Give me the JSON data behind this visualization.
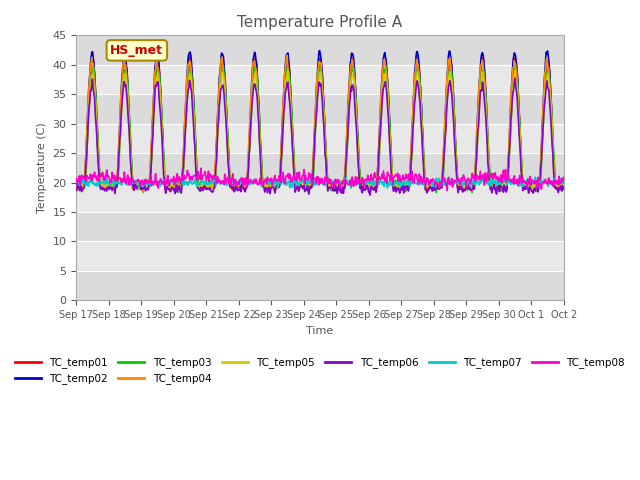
{
  "title": "Temperature Profile A",
  "xlabel": "Time",
  "ylabel": "Temperature (C)",
  "ylim": [
    0,
    45
  ],
  "yticks": [
    0,
    5,
    10,
    15,
    20,
    25,
    30,
    35,
    40,
    45
  ],
  "annotation_text": "HS_met",
  "series_colors": {
    "TC_temp01": "#ff0000",
    "TC_temp02": "#0000cc",
    "TC_temp03": "#00cc00",
    "TC_temp04": "#ff8800",
    "TC_temp05": "#cccc00",
    "TC_temp06": "#8800cc",
    "TC_temp07": "#00cccc",
    "TC_temp08": "#ff00cc"
  },
  "xtick_labels": [
    "Sep 17",
    "Sep 18",
    "Sep 19",
    "Sep 20",
    "Sep 21",
    "Sep 22",
    "Sep 23",
    "Sep 24",
    "Sep 25",
    "Sep 26",
    "Sep 27",
    "Sep 28",
    "Sep 29",
    "Sep 30",
    "Oct 1",
    "Oct 2"
  ],
  "plot_bg": "#e8e8e8",
  "num_days": 15,
  "points_per_day": 48,
  "base_temp": 19.5,
  "day_amplitude": 12.0
}
